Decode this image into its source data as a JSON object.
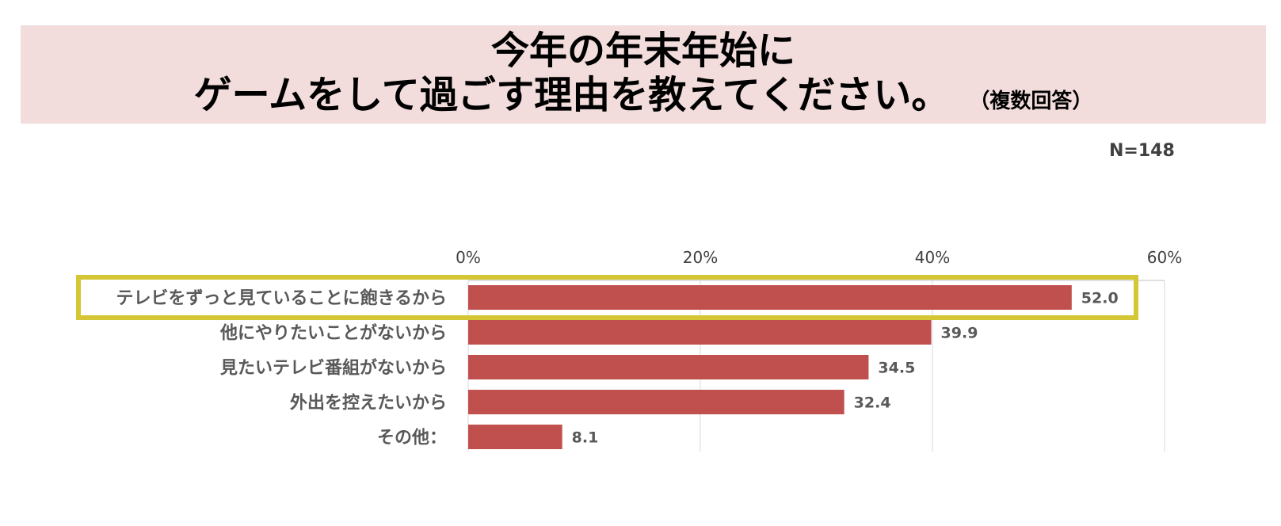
{
  "header": {
    "title_line_1": "今年の年末年始に",
    "title_line_2": "ゲームをして過ごす理由を教えてください。",
    "title_note": "（複数回答）"
  },
  "sample_size": "N=148",
  "colors": {
    "header_band": "#f2dcdc",
    "bar": "#c0504d",
    "highlight_border": "#d4c634"
  },
  "chart_data": {
    "type": "bar",
    "orientation": "horizontal",
    "categories": [
      "テレビをずっと見ていることに飽きるから",
      "他にやりたいことがないから",
      "見たいテレビ番組がないから",
      "外出を控えたいから",
      "その他："
    ],
    "values": [
      52.0,
      39.9,
      34.5,
      32.4,
      8.1
    ],
    "value_labels": [
      "52.0",
      "39.9",
      "34.5",
      "32.4",
      "8.1"
    ],
    "xlim": [
      0,
      60
    ],
    "ticks": [
      "0%",
      "20%",
      "40%",
      "60%"
    ],
    "tick_values": [
      0,
      20,
      40,
      60
    ],
    "highlighted_category_index": 0,
    "grid": true,
    "axis_position": "top"
  }
}
